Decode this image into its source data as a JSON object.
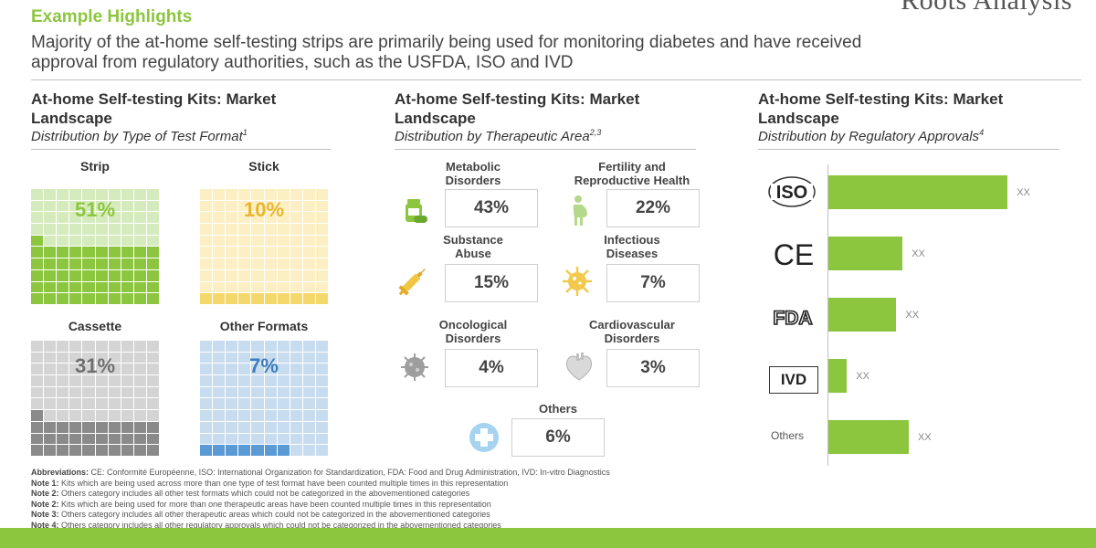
{
  "header": {
    "title": "Example Highlights",
    "subtitle_line1": "Majority of the at-home self-testing strips are primarily being used for monitoring diabetes and have received",
    "subtitle_line2": "approval from regulatory authorities, such as the USFDA, ISO and IVD",
    "logo_text": "Roots Analysis"
  },
  "colors": {
    "accent": "#8cc63f",
    "strip": "#8cc63f",
    "stick": "#f5d86b",
    "cassette": "#8a8a8a",
    "other_formats": "#5b9bd5"
  },
  "panels": {
    "left": {
      "title": "At-home Self-testing Kits: Market Landscape",
      "subtitle": "Distribution by Type of Test Format",
      "subtitle_sup": "1"
    },
    "middle": {
      "title": "At-home Self-testing Kits: Market Landscape",
      "subtitle": "Distribution by Therapeutic Area",
      "subtitle_sup": "2,3"
    },
    "right": {
      "title": "At-home Self-testing Kits: Market Landscape",
      "subtitle": "Distribution by Regulatory Approvals",
      "subtitle_sup": "4"
    }
  },
  "chart_data": [
    {
      "type": "waffle",
      "categories": [
        "Strip",
        "Stick",
        "Cassette",
        "Other Formats"
      ],
      "values": [
        51,
        10,
        31,
        7
      ],
      "value_labels": [
        "51%",
        "10%",
        "31%",
        "7%"
      ],
      "unit": "%"
    },
    {
      "type": "table",
      "categories": [
        "Metabolic Disorders",
        "Fertility and Reproductive Health",
        "Substance Abuse",
        "Infectious Diseases",
        "Oncological Disorders",
        "Cardiovascular Disorders",
        "Others"
      ],
      "label_lines": [
        [
          "Metabolic",
          "Disorders"
        ],
        [
          "Fertility and",
          "Reproductive Health"
        ],
        [
          "Substance",
          "Abuse"
        ],
        [
          "Infectious",
          "Diseases"
        ],
        [
          "Oncological",
          "Disorders"
        ],
        [
          "Cardiovascular",
          "Disorders"
        ],
        [
          "Others"
        ]
      ],
      "values": [
        43,
        22,
        15,
        7,
        4,
        3,
        6
      ],
      "value_labels": [
        "43%",
        "22%",
        "15%",
        "7%",
        "4%",
        "3%",
        "6%"
      ],
      "icons": [
        "pill-bottle-icon",
        "pregnant-woman-icon",
        "syringe-icon",
        "virus-icon",
        "cell-icon",
        "heart-icon",
        "medical-cross-icon"
      ],
      "unit": "%"
    },
    {
      "type": "bar",
      "orientation": "horizontal",
      "categories": [
        "ISO",
        "CE",
        "FDA",
        "IVD",
        "Others"
      ],
      "values": [
        29,
        12,
        11,
        3,
        13
      ],
      "value_labels": [
        "XX",
        "XX",
        "XX",
        "XX",
        "XX"
      ],
      "xlim": [
        0,
        30
      ],
      "grid": false
    }
  ],
  "notes": [
    {
      "label": "Abbreviations:",
      "text": " CE: Conformité Européenne, ISO: International Organization for Standardization, FDA: Food and Drug Administration, IVD: In-vitro Diagnostics"
    },
    {
      "label": "Note 1:",
      "text": " Kits which are being used across more than one type of test format have been counted multiple times in this representation"
    },
    {
      "label": "Note 2:",
      "text": " Others category includes all other test formats which could not be categorized in the abovementioned categories"
    },
    {
      "label": "Note 2:",
      "text": " Kits which are being used for more than one therapeutic areas have been counted multiple times in this representation"
    },
    {
      "label": "Note 3:",
      "text": " Others category includes all other therapeutic areas which could not be categorized in the abovementioned categories"
    },
    {
      "label": "Note 4:",
      "text": " Others category includes all other regulatory approvals which could not be categorized in the abovementioned categories"
    }
  ]
}
